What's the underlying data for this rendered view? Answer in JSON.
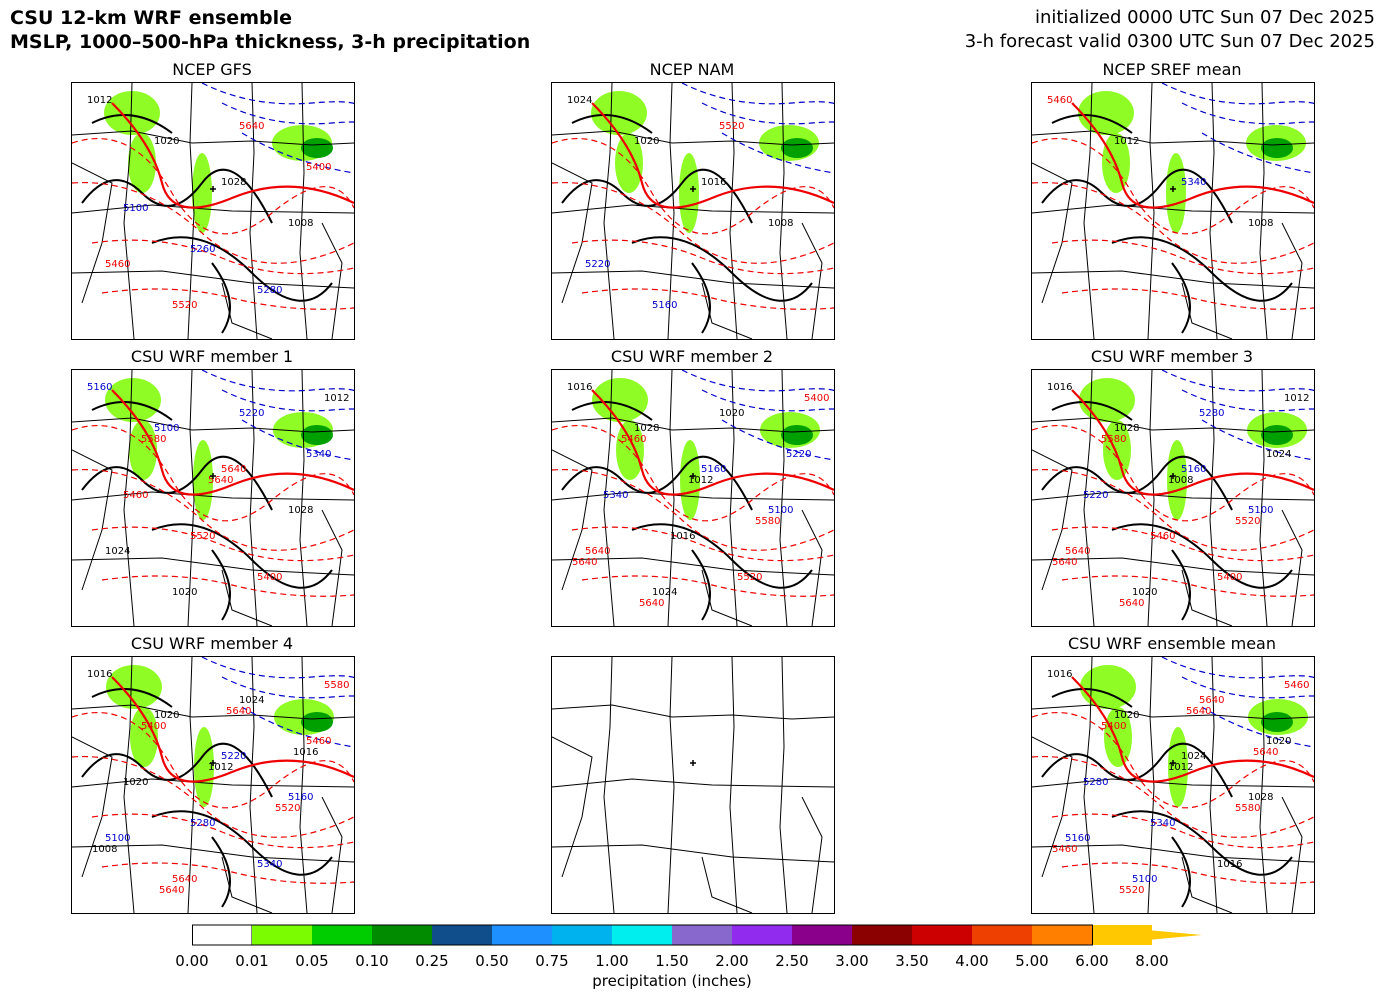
{
  "header": {
    "title_line1": "CSU 12-km WRF ensemble",
    "title_line2": "MSLP, 1000–500-hPa thickness, 3-h precipitation",
    "init_line": "initialized 0000 UTC Sun 07 Dec 2025",
    "valid_line": "3-h forecast valid 0300 UTC Sun 07 Dec 2025"
  },
  "panels": [
    {
      "title": "NCEP GFS",
      "labels": [
        "1012",
        "1020",
        "1028",
        "1008",
        "5460",
        "5520",
        "5640",
        "5400",
        "5100",
        "5260",
        "5280"
      ]
    },
    {
      "title": "NCEP NAM",
      "labels": [
        "1024",
        "1020",
        "1016",
        "1008",
        "5220",
        "5160",
        "5520"
      ]
    },
    {
      "title": "NCEP SREF mean",
      "labels": [
        "5460",
        "1012",
        "5340",
        "1008"
      ]
    },
    {
      "title": "CSU WRF member 1",
      "labels": [
        "5160",
        "5100",
        "5640",
        "1028",
        "1024",
        "1020",
        "5220",
        "5340",
        "5460",
        "5520",
        "5400",
        "1012",
        "5580",
        "5640"
      ]
    },
    {
      "title": "CSU WRF member 2",
      "labels": [
        "1016",
        "1028",
        "5160",
        "5100",
        "5640",
        "1024",
        "1020",
        "5220",
        "5340",
        "1016",
        "5520",
        "5400",
        "5460",
        "1012",
        "5580",
        "5640",
        "5640"
      ]
    },
    {
      "title": "CSU WRF member 3",
      "labels": [
        "1016",
        "1028",
        "5160",
        "5100",
        "5640",
        "1020",
        "5280",
        "1024",
        "5220",
        "5460",
        "5400",
        "1012",
        "5580",
        "1008",
        "5520",
        "5640",
        "5640"
      ]
    },
    {
      "title": "CSU WRF member 4",
      "labels": [
        "1016",
        "1020",
        "5220",
        "5160",
        "5100",
        "5640",
        "1024",
        "5460",
        "1020",
        "5280",
        "5340",
        "5580",
        "5400",
        "1012",
        "5520",
        "1008",
        "5640",
        "5640",
        "1016"
      ]
    },
    {
      "title": "",
      "labels": []
    },
    {
      "title": "CSU WRF ensemble mean",
      "labels": [
        "1016",
        "1020",
        "1024",
        "1028",
        "5160",
        "5100",
        "5640",
        "1020",
        "5280",
        "5340",
        "1016",
        "5460",
        "5400",
        "1012",
        "5580",
        "5460",
        "5520",
        "5640",
        "5640"
      ]
    }
  ],
  "colorbar": {
    "label": "precipitation (inches)",
    "ticks": [
      "0.00",
      "0.01",
      "0.05",
      "0.10",
      "0.25",
      "0.50",
      "0.75",
      "1.00",
      "1.50",
      "2.00",
      "2.50",
      "3.00",
      "3.50",
      "4.00",
      "5.00",
      "6.00",
      "8.00"
    ],
    "colors": [
      "#ffffff",
      "#7cfc00",
      "#00cd00",
      "#008b00",
      "#104e8b",
      "#1e90ff",
      "#00b2ee",
      "#00eeee",
      "#8968cd",
      "#912cee",
      "#8b008b",
      "#8b0000",
      "#cd0000",
      "#ee4000",
      "#ff7f00",
      "#ffc800"
    ]
  }
}
